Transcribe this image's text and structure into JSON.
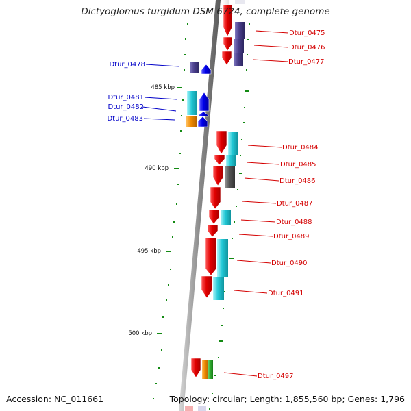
{
  "title": "Dictyoglomus turgidum DSM 6724, complete genome",
  "footer": {
    "accession": "Accession: NC_011661",
    "topology": "Topology: circular; Length: 1,855,560 bp; Genes: 1,796"
  },
  "scale_labels": [
    "485 kbp",
    "490 kbp",
    "495 kbp",
    "500 kbp"
  ],
  "colors": {
    "forward_strand": "#e00000",
    "reverse_strand": "#0000e0",
    "cog_purple": "#4a3f8c",
    "cog_cyan": "#20c8d4",
    "cog_orange": "#f08a00",
    "cog_gray": "#555555",
    "cog_green": "#30b030",
    "label_right": "#d40000",
    "label_left": "#0000c8",
    "tick": "#138a13"
  },
  "genes_right": [
    "Dtur_0475",
    "Dtur_0476",
    "Dtur_0477",
    "Dtur_0484",
    "Dtur_0485",
    "Dtur_0486",
    "Dtur_0487",
    "Dtur_0488",
    "Dtur_0489",
    "Dtur_0490",
    "Dtur_0491",
    "Dtur_0497"
  ],
  "genes_left": [
    "Dtur_0478",
    "Dtur_0481",
    "Dtur_0482",
    "Dtur_0483"
  ]
}
